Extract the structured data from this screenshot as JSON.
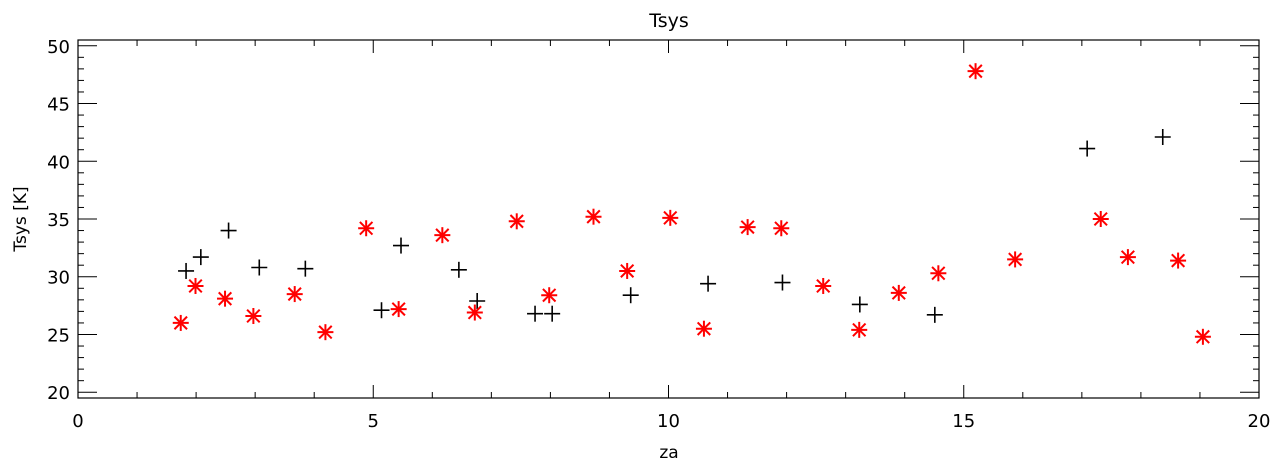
{
  "chart_data": {
    "type": "scatter",
    "title": "Tsys",
    "xlabel": "za",
    "ylabel": "Tsys [K]",
    "xlim": [
      0,
      20
    ],
    "ylim": [
      19.5,
      50.5
    ],
    "x_ticks": [
      0,
      5,
      10,
      15,
      20
    ],
    "x_tick_labels": [
      "0",
      "5",
      "10",
      "15",
      "20"
    ],
    "y_ticks": [
      20,
      25,
      30,
      35,
      40,
      45,
      50
    ],
    "y_tick_labels": [
      "20",
      "25",
      "30",
      "35",
      "40",
      "45",
      "50"
    ],
    "x_minor_step": 1,
    "y_minor_step": 1,
    "grid": false,
    "legend": "none",
    "series": [
      {
        "marker": "plus",
        "color": "#000000",
        "points": [
          [
            1.83,
            30.5
          ],
          [
            2.08,
            31.7
          ],
          [
            2.55,
            34.0
          ],
          [
            3.07,
            30.8
          ],
          [
            3.85,
            30.7
          ],
          [
            5.14,
            27.1
          ],
          [
            5.47,
            32.7
          ],
          [
            6.45,
            30.6
          ],
          [
            6.76,
            27.9
          ],
          [
            7.74,
            26.8
          ],
          [
            8.03,
            26.8
          ],
          [
            9.36,
            28.4
          ],
          [
            10.67,
            29.4
          ],
          [
            11.93,
            29.5
          ],
          [
            13.24,
            27.6
          ],
          [
            14.51,
            26.7
          ],
          [
            17.09,
            41.1
          ],
          [
            18.37,
            42.1
          ]
        ]
      },
      {
        "marker": "asterisk",
        "color": "#ff0000",
        "points": [
          [
            1.74,
            26.0
          ],
          [
            1.99,
            29.2
          ],
          [
            2.49,
            28.1
          ],
          [
            2.97,
            26.6
          ],
          [
            3.67,
            28.5
          ],
          [
            4.19,
            25.2
          ],
          [
            4.88,
            34.2
          ],
          [
            5.43,
            27.2
          ],
          [
            6.17,
            33.6
          ],
          [
            6.72,
            26.9
          ],
          [
            7.43,
            34.8
          ],
          [
            7.98,
            28.4
          ],
          [
            8.73,
            35.2
          ],
          [
            9.3,
            30.5
          ],
          [
            10.03,
            35.1
          ],
          [
            10.6,
            25.5
          ],
          [
            11.34,
            34.3
          ],
          [
            11.91,
            34.2
          ],
          [
            12.62,
            29.2
          ],
          [
            13.23,
            25.4
          ],
          [
            13.9,
            28.6
          ],
          [
            14.57,
            30.3
          ],
          [
            15.2,
            47.8
          ],
          [
            15.87,
            31.5
          ],
          [
            17.32,
            35.0
          ],
          [
            17.78,
            31.7
          ],
          [
            18.63,
            31.4
          ],
          [
            19.05,
            24.8
          ]
        ]
      }
    ]
  }
}
